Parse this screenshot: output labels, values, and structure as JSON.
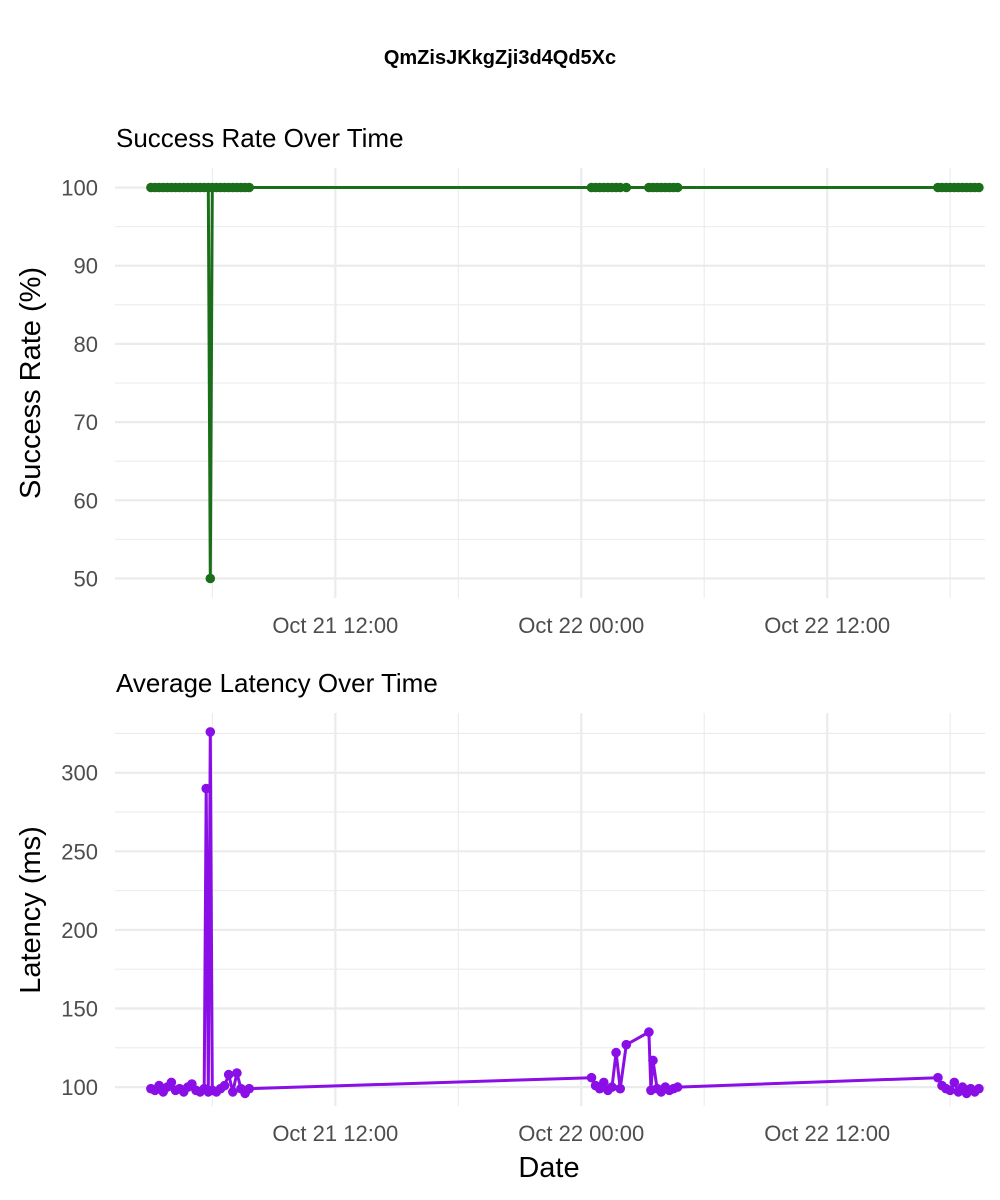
{
  "figure": {
    "title": "QmZisJKkgZji3d4Qd5Xc"
  },
  "chart_data": [
    {
      "type": "line",
      "title": "Success Rate Over Time",
      "xlabel": "",
      "ylabel": "Success Rate (%)",
      "ylim": [
        47.5,
        102.5
      ],
      "yticks": [
        50,
        60,
        70,
        80,
        90,
        100
      ],
      "xlim": [
        "2024-10-21 01:15",
        "2024-10-22 19:42"
      ],
      "xticks": [
        {
          "value": "2024-10-21 12:00",
          "label": "Oct 21 12:00"
        },
        {
          "value": "2024-10-22 00:00",
          "label": "Oct 22 00:00"
        },
        {
          "value": "2024-10-22 12:00",
          "label": "Oct 22 12:00"
        }
      ],
      "grid": true,
      "color": "#1a6e1a",
      "series": [
        {
          "x": [
            "2024-10-21 03:00",
            "2024-10-21 03:12",
            "2024-10-21 03:24",
            "2024-10-21 03:36",
            "2024-10-21 03:48",
            "2024-10-21 04:00",
            "2024-10-21 04:12",
            "2024-10-21 04:24",
            "2024-10-21 04:36",
            "2024-10-21 04:48",
            "2024-10-21 05:00",
            "2024-10-21 05:12",
            "2024-10-21 05:24",
            "2024-10-21 05:36",
            "2024-10-21 05:48",
            "2024-10-21 05:54",
            "2024-10-21 06:00",
            "2024-10-21 06:12",
            "2024-10-21 06:24",
            "2024-10-21 06:36",
            "2024-10-21 06:48",
            "2024-10-21 07:00",
            "2024-10-21 07:12",
            "2024-10-21 07:24",
            "2024-10-21 07:36",
            "2024-10-21 07:48",
            "2024-10-22 00:30",
            "2024-10-22 00:42",
            "2024-10-22 00:54",
            "2024-10-22 01:06",
            "2024-10-22 01:18",
            "2024-10-22 01:30",
            "2024-10-22 01:42",
            "2024-10-22 01:54",
            "2024-10-22 02:12",
            "2024-10-22 03:18",
            "2024-10-22 03:30",
            "2024-10-22 03:42",
            "2024-10-22 03:54",
            "2024-10-22 04:06",
            "2024-10-22 04:18",
            "2024-10-22 04:30",
            "2024-10-22 04:42",
            "2024-10-22 17:24",
            "2024-10-22 17:36",
            "2024-10-22 17:48",
            "2024-10-22 18:00",
            "2024-10-22 18:12",
            "2024-10-22 18:24",
            "2024-10-22 18:36",
            "2024-10-22 18:48",
            "2024-10-22 19:00",
            "2024-10-22 19:12",
            "2024-10-22 19:24"
          ],
          "y": [
            100,
            100,
            100,
            100,
            100,
            100,
            100,
            100,
            100,
            100,
            100,
            100,
            100,
            100,
            100,
            50,
            100,
            100,
            100,
            100,
            100,
            100,
            100,
            100,
            100,
            100,
            100,
            100,
            100,
            100,
            100,
            100,
            100,
            100,
            100,
            100,
            100,
            100,
            100,
            100,
            100,
            100,
            100,
            100,
            100,
            100,
            100,
            100,
            100,
            100,
            100,
            100,
            100,
            100
          ]
        }
      ]
    },
    {
      "type": "line",
      "title": "Average Latency Over Time",
      "xlabel": "Date",
      "ylabel": "Latency (ms)",
      "ylim": [
        88,
        338
      ],
      "yticks": [
        100,
        150,
        200,
        250,
        300
      ],
      "xlim": [
        "2024-10-21 01:15",
        "2024-10-22 19:42"
      ],
      "xticks": [
        {
          "value": "2024-10-21 12:00",
          "label": "Oct 21 12:00"
        },
        {
          "value": "2024-10-22 00:00",
          "label": "Oct 22 00:00"
        },
        {
          "value": "2024-10-22 12:00",
          "label": "Oct 22 12:00"
        }
      ],
      "grid": true,
      "color": "#8a0ee6",
      "series": [
        {
          "x": [
            "2024-10-21 03:00",
            "2024-10-21 03:12",
            "2024-10-21 03:24",
            "2024-10-21 03:36",
            "2024-10-21 03:48",
            "2024-10-21 04:00",
            "2024-10-21 04:12",
            "2024-10-21 04:24",
            "2024-10-21 04:36",
            "2024-10-21 04:48",
            "2024-10-21 05:00",
            "2024-10-21 05:12",
            "2024-10-21 05:24",
            "2024-10-21 05:36",
            "2024-10-21 05:42",
            "2024-10-21 05:48",
            "2024-10-21 05:54",
            "2024-10-21 06:00",
            "2024-10-21 06:12",
            "2024-10-21 06:24",
            "2024-10-21 06:36",
            "2024-10-21 06:48",
            "2024-10-21 07:00",
            "2024-10-21 07:12",
            "2024-10-21 07:24",
            "2024-10-21 07:36",
            "2024-10-21 07:48",
            "2024-10-22 00:30",
            "2024-10-22 00:42",
            "2024-10-22 00:54",
            "2024-10-22 01:06",
            "2024-10-22 01:18",
            "2024-10-22 01:30",
            "2024-10-22 01:42",
            "2024-10-22 01:54",
            "2024-10-22 02:12",
            "2024-10-22 03:18",
            "2024-10-22 03:24",
            "2024-10-22 03:30",
            "2024-10-22 03:42",
            "2024-10-22 03:54",
            "2024-10-22 04:06",
            "2024-10-22 04:18",
            "2024-10-22 04:30",
            "2024-10-22 04:42",
            "2024-10-22 17:24",
            "2024-10-22 17:36",
            "2024-10-22 17:48",
            "2024-10-22 18:00",
            "2024-10-22 18:12",
            "2024-10-22 18:24",
            "2024-10-22 18:36",
            "2024-10-22 18:48",
            "2024-10-22 19:00",
            "2024-10-22 19:12",
            "2024-10-22 19:24"
          ],
          "y": [
            99,
            98,
            101,
            97,
            100,
            103,
            98,
            99,
            97,
            100,
            102,
            98,
            97,
            99,
            290,
            97,
            326,
            98,
            97,
            99,
            101,
            108,
            97,
            109,
            99,
            96,
            99,
            106,
            101,
            99,
            103,
            98,
            100,
            122,
            99,
            127,
            135,
            98,
            117,
            99,
            97,
            100,
            98,
            99,
            100,
            106,
            101,
            99,
            98,
            103,
            97,
            100,
            96,
            99,
            97,
            99
          ]
        }
      ]
    }
  ]
}
